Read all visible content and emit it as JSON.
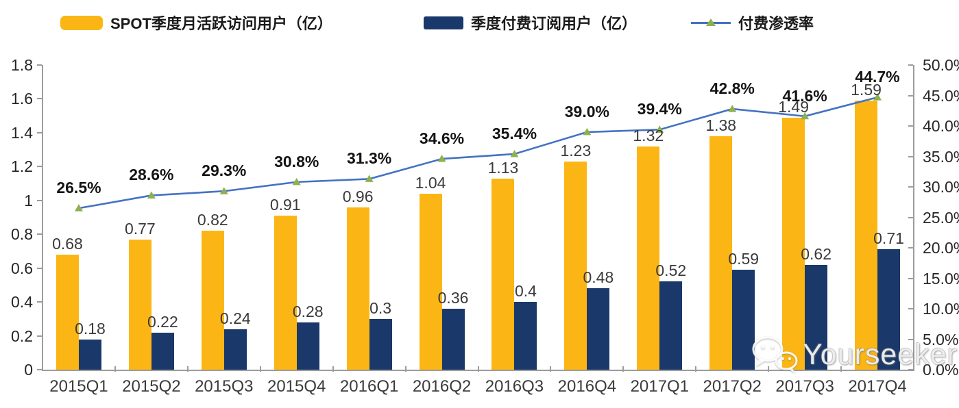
{
  "colors": {
    "mau_bar": "#FBB615",
    "sub_bar": "#1A3869",
    "line": "#4472C4",
    "marker": "#8FB04E",
    "axis": "#9C9C9C",
    "value_text": "#3A3A3A",
    "pct_text": "#141414"
  },
  "legend": {
    "items": [
      {
        "label": "SPOT季度月活跃访问用户（亿）",
        "swatch": "yellow-bar"
      },
      {
        "label": "季度付费订阅用户（亿）",
        "swatch": "navy-bar"
      },
      {
        "label": "付费渗透率",
        "swatch": "line-with-triangle-marker"
      }
    ]
  },
  "chart_data": {
    "type": "bar",
    "subtype": "grouped-bars-with-line-overlay",
    "title": "",
    "categories": [
      "2015Q1",
      "2015Q2",
      "2015Q3",
      "2015Q4",
      "2016Q1",
      "2016Q2",
      "2016Q3",
      "2016Q4",
      "2017Q1",
      "2017Q2",
      "2017Q3",
      "2017Q4"
    ],
    "series": [
      {
        "name": "SPOT季度月活跃访问用户（亿）",
        "type": "bar",
        "axis": "left",
        "color": "#FBB615",
        "values": [
          0.68,
          0.77,
          0.82,
          0.91,
          0.96,
          1.04,
          1.13,
          1.23,
          1.32,
          1.38,
          1.49,
          1.59
        ],
        "labels": [
          "0.68",
          "0.77",
          "0.82",
          "0.91",
          "0.96",
          "1.04",
          "1.13",
          "1.23",
          "1.32",
          "1.38",
          "1.49",
          "1.59"
        ]
      },
      {
        "name": "季度付费订阅用户（亿）",
        "type": "bar",
        "axis": "left",
        "color": "#1A3869",
        "values": [
          0.18,
          0.22,
          0.24,
          0.28,
          0.3,
          0.36,
          0.4,
          0.48,
          0.52,
          0.59,
          0.62,
          0.71
        ],
        "labels": [
          "0.18",
          "0.22",
          "0.24",
          "0.28",
          "0.3",
          "0.36",
          "0.4",
          "0.48",
          "0.52",
          "0.59",
          "0.62",
          "0.71"
        ]
      },
      {
        "name": "付费渗透率",
        "type": "line",
        "axis": "right",
        "color": "#4472C4",
        "marker": "triangle",
        "marker_color": "#8FB04E",
        "values": [
          26.5,
          28.6,
          29.3,
          30.8,
          31.3,
          34.6,
          35.4,
          39.0,
          39.4,
          42.8,
          41.6,
          44.7
        ],
        "labels": [
          "26.5%",
          "28.6%",
          "29.3%",
          "30.8%",
          "31.3%",
          "34.6%",
          "35.4%",
          "39.0%",
          "39.4%",
          "42.8%",
          "41.6%",
          "44.7%"
        ]
      }
    ],
    "left_axis": {
      "min": 0,
      "max": 1.8,
      "step": 0.2,
      "ticks": [
        "1.8",
        "1.6",
        "1.4",
        "1.2",
        "1",
        "0.8",
        "0.6",
        "0.4",
        "0.2",
        "0"
      ]
    },
    "right_axis": {
      "min": 0,
      "max": 50,
      "step": 5,
      "ticks": [
        "50.0%",
        "45.0%",
        "40.0%",
        "35.0%",
        "30.0%",
        "25.0%",
        "20.0%",
        "15.0%",
        "10.0%",
        "5.0%",
        "0.0%"
      ]
    },
    "grid": false,
    "legend_position": "top"
  },
  "watermark": {
    "text": "Yourseeker",
    "icon": "wechat-icon"
  }
}
